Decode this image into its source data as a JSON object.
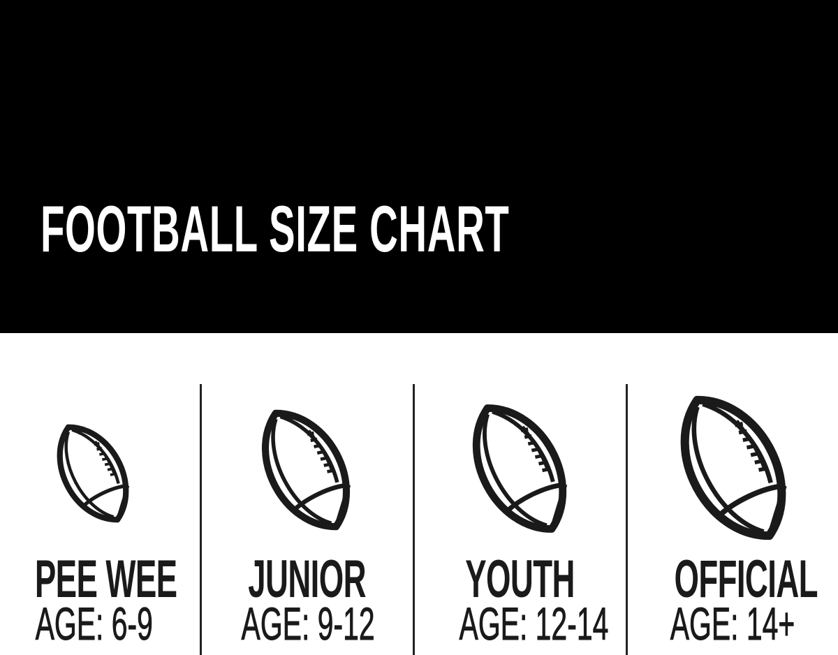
{
  "header": {
    "title": "FOOTBALL SIZE CHART",
    "background": "#000000",
    "text_color": "#ffffff"
  },
  "sizes": [
    {
      "name": "PEE WEE",
      "age": "AGE: 6-9",
      "icon": "football-icon"
    },
    {
      "name": "JUNIOR",
      "age": "AGE: 9-12",
      "icon": "football-icon"
    },
    {
      "name": "YOUTH",
      "age": "AGE: 12-14",
      "icon": "football-icon"
    },
    {
      "name": "OFFICIAL",
      "age": "AGE: 14+",
      "icon": "football-icon"
    }
  ]
}
